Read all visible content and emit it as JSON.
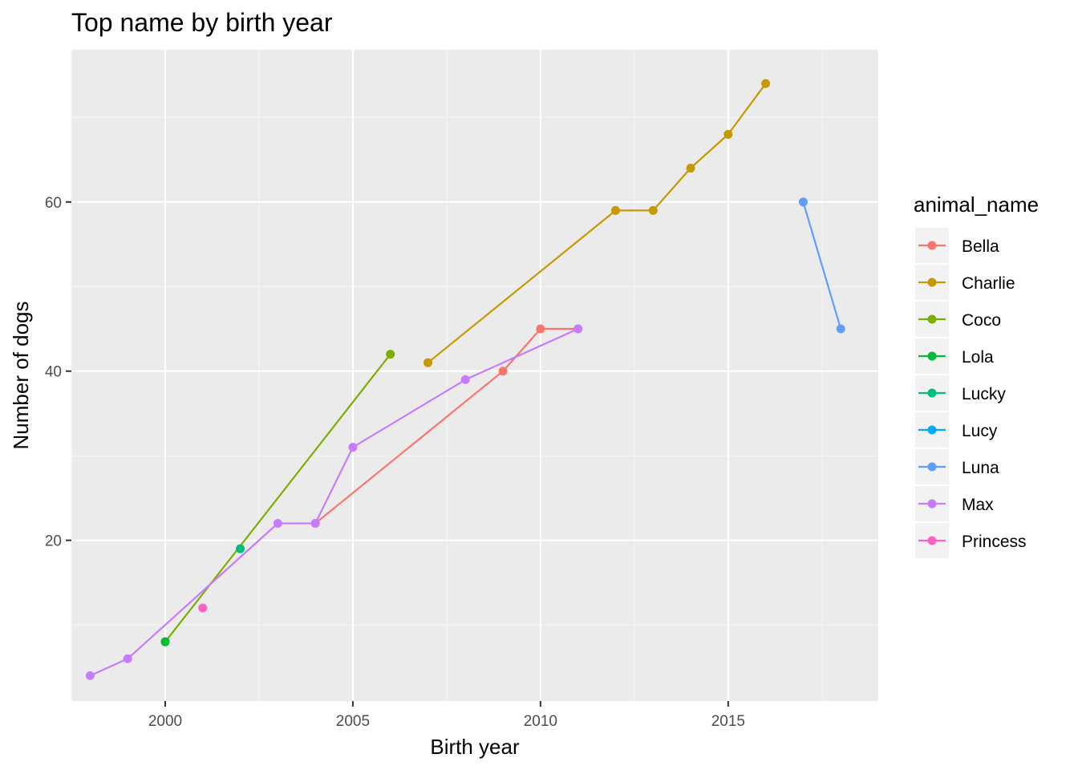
{
  "chart_data": {
    "type": "line",
    "title": "Top name by birth year",
    "xlabel": "Birth year",
    "ylabel": "Number of dogs",
    "xlim": [
      1997.5,
      2019.0
    ],
    "ylim": [
      1.0,
      78.0
    ],
    "x_ticks": [
      2000,
      2005,
      2010,
      2015
    ],
    "x_tick_labels": [
      "2000",
      "2005",
      "2010",
      "2015"
    ],
    "y_ticks": [
      20,
      40,
      60
    ],
    "y_tick_labels": [
      "20",
      "40",
      "60"
    ],
    "grid": true,
    "legend_title": "animal_name",
    "legend_position": "right",
    "series": [
      {
        "name": "Bella",
        "color": "#F8766D",
        "x": [
          2004,
          2009,
          2010,
          2011
        ],
        "y": [
          22,
          40,
          45,
          45
        ]
      },
      {
        "name": "Charlie",
        "color": "#C49A00",
        "x": [
          2007,
          2012,
          2013,
          2014,
          2015,
          2016
        ],
        "y": [
          41,
          59,
          59,
          64,
          68,
          74
        ]
      },
      {
        "name": "Coco",
        "color": "#7CAE00",
        "x": [
          2000,
          2006
        ],
        "y": [
          8,
          42
        ]
      },
      {
        "name": "Lola",
        "color": "#00BA38",
        "x": [
          2000
        ],
        "y": [
          8
        ]
      },
      {
        "name": "Lucky",
        "color": "#00BF7D",
        "x": [
          2002
        ],
        "y": [
          19
        ]
      },
      {
        "name": "Lucy",
        "color": "#00A9FF",
        "x": [],
        "y": []
      },
      {
        "name": "Luna",
        "color": "#619CFF",
        "x": [
          2017,
          2018
        ],
        "y": [
          60,
          45
        ]
      },
      {
        "name": "Max",
        "color": "#C77CFF",
        "x": [
          1998,
          1999,
          2003,
          2004,
          2005,
          2008,
          2011
        ],
        "y": [
          4,
          6,
          22,
          22,
          31,
          39,
          45
        ]
      },
      {
        "name": "Princess",
        "color": "#FF61C3",
        "x": [
          2001
        ],
        "y": [
          12
        ]
      }
    ]
  },
  "colors": {
    "panel_background": "#EBEBEB",
    "grid_major": "#FFFFFF",
    "grid_minor": "#F5F5F5",
    "tick_label": "#4D4D4D",
    "legend_key_background": "#F2F2F2"
  }
}
